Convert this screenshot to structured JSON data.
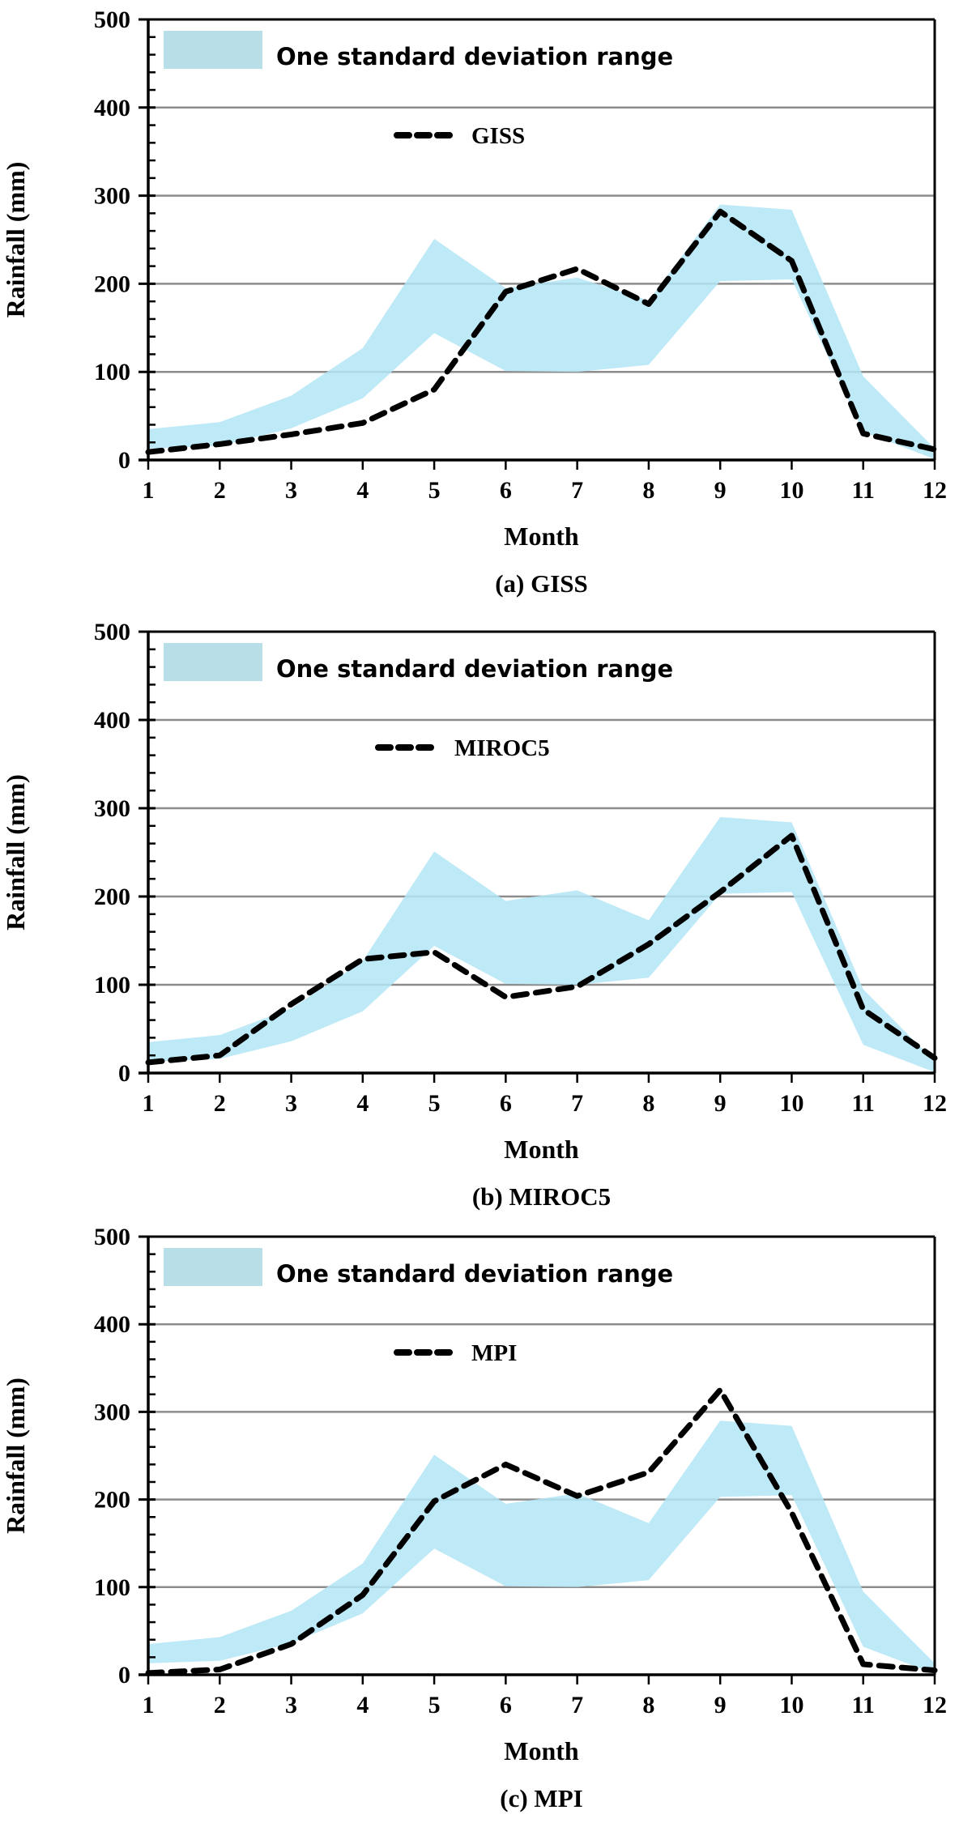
{
  "colors": {
    "band_fill": "#b3e5f6",
    "legend_swatch": "#b8dfe8",
    "line": "#000000",
    "grid": "#8c8c8c",
    "axis": "#000000"
  },
  "chart_data": [
    {
      "type": "area",
      "panel": "a",
      "caption": "(a) GISS",
      "xlabel": "Month",
      "ylabel": "Rainfall (mm)",
      "x": [
        1,
        2,
        3,
        4,
        5,
        6,
        7,
        8,
        9,
        10,
        11,
        12
      ],
      "x_tick_labels": [
        "1",
        "2",
        "3",
        "4",
        "5",
        "6",
        "7",
        "8",
        "9",
        "10",
        "11",
        "12"
      ],
      "ylim": [
        0,
        500
      ],
      "y_ticks": [
        0,
        100,
        200,
        300,
        400,
        500
      ],
      "y_tick_labels": [
        "0",
        "100",
        "200",
        "300",
        "400",
        "500"
      ],
      "grid": true,
      "band": {
        "name": "One standard deviation range",
        "upper": [
          35,
          43,
          73,
          127,
          251,
          195,
          207,
          181,
          290,
          284,
          95,
          13
        ],
        "lower": [
          13,
          16,
          36,
          70,
          144,
          101,
          100,
          108,
          203,
          205,
          32,
          1
        ]
      },
      "series": [
        {
          "name": "GISS",
          "style": "dashed",
          "values": [
            9,
            18,
            29,
            42,
            80,
            191,
            217,
            177,
            282,
            226,
            30,
            12
          ]
        }
      ],
      "legend": {
        "band_label": "One standard deviation range",
        "line_label": "GISS",
        "placement": "top-left"
      }
    },
    {
      "type": "area",
      "panel": "b",
      "caption": "(b) MIROC5",
      "xlabel": "Month",
      "ylabel": "Rainfall (mm)",
      "x": [
        1,
        2,
        3,
        4,
        5,
        6,
        7,
        8,
        9,
        10,
        11,
        12
      ],
      "x_tick_labels": [
        "1",
        "2",
        "3",
        "4",
        "5",
        "6",
        "7",
        "8",
        "9",
        "10",
        "11",
        "12"
      ],
      "ylim": [
        0,
        500
      ],
      "y_ticks": [
        0,
        100,
        200,
        300,
        400,
        500
      ],
      "y_tick_labels": [
        "0",
        "100",
        "200",
        "300",
        "400",
        "500"
      ],
      "grid": true,
      "band": {
        "name": "One standard deviation range",
        "upper": [
          35,
          43,
          73,
          127,
          251,
          195,
          207,
          173,
          290,
          284,
          95,
          13
        ],
        "lower": [
          13,
          16,
          36,
          70,
          144,
          101,
          100,
          108,
          203,
          205,
          32,
          1
        ]
      },
      "series": [
        {
          "name": "MIROC5",
          "style": "dashed",
          "values": [
            12,
            20,
            78,
            129,
            137,
            86,
            98,
            146,
            205,
            269,
            72,
            17
          ]
        }
      ],
      "legend": {
        "band_label": "One standard deviation range",
        "line_label": "MIROC5",
        "placement": "top-left"
      }
    },
    {
      "type": "area",
      "panel": "c",
      "caption": "(c) MPI",
      "xlabel": "Month",
      "ylabel": "Rainfall (mm)",
      "x": [
        1,
        2,
        3,
        4,
        5,
        6,
        7,
        8,
        9,
        10,
        11,
        12
      ],
      "x_tick_labels": [
        "1",
        "2",
        "3",
        "4",
        "5",
        "6",
        "7",
        "8",
        "9",
        "10",
        "11",
        "12"
      ],
      "ylim": [
        0,
        500
      ],
      "y_ticks": [
        0,
        100,
        200,
        300,
        400,
        500
      ],
      "y_tick_labels": [
        "0",
        "100",
        "200",
        "300",
        "400",
        "500"
      ],
      "grid": true,
      "band": {
        "name": "One standard deviation range",
        "upper": [
          35,
          43,
          73,
          127,
          251,
          195,
          207,
          173,
          290,
          284,
          95,
          13
        ],
        "lower": [
          13,
          16,
          36,
          70,
          144,
          101,
          100,
          108,
          203,
          205,
          32,
          1
        ]
      },
      "series": [
        {
          "name": "MPI",
          "style": "dashed",
          "values": [
            2,
            6,
            35,
            91,
            198,
            240,
            204,
            231,
            325,
            185,
            12,
            5
          ]
        }
      ],
      "legend": {
        "band_label": "One standard deviation range",
        "line_label": "MPI",
        "placement": "top-left"
      }
    }
  ]
}
